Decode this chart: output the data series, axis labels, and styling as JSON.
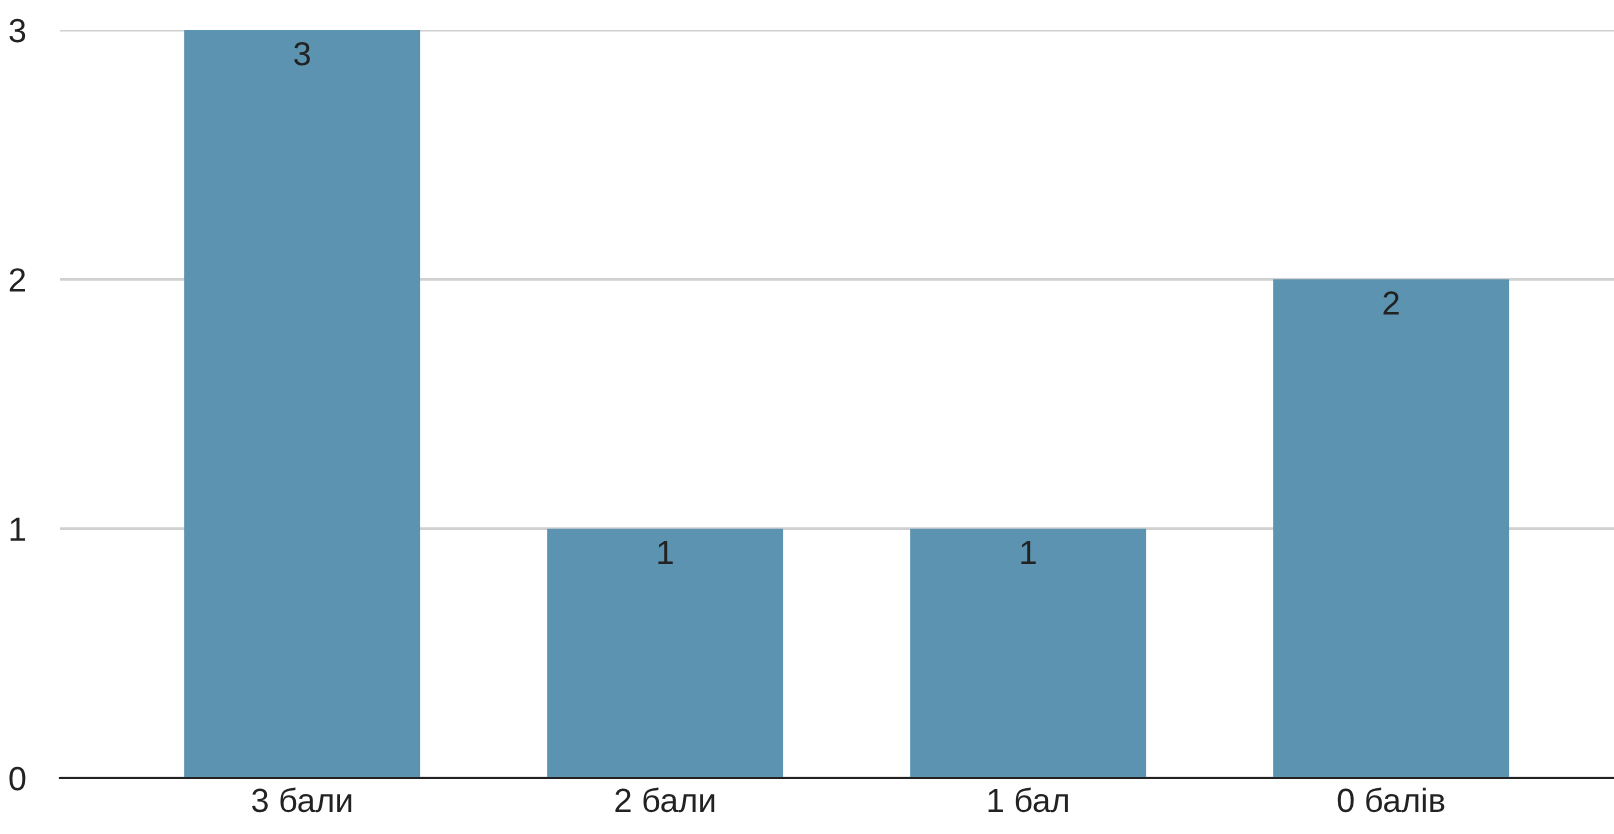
{
  "chart_data": {
    "type": "bar",
    "categories": [
      "3 бали",
      "2 бали",
      "1 бал",
      "0 балів"
    ],
    "values": [
      3,
      1,
      1,
      2
    ],
    "color": "#5b93b0",
    "ylim": [
      0,
      3
    ],
    "yticks": [
      0,
      1,
      2,
      3
    ],
    "grid": "y",
    "data_labels": true,
    "legend": false
  }
}
